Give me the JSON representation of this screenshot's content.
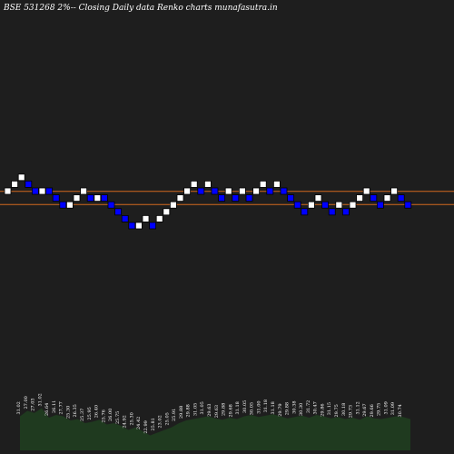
{
  "header": {
    "title": "BSE 531268  2%-- Closing Daily data  Renko  charts munafasutra.in"
  },
  "colors": {
    "background": "#1e1e1e",
    "up_brick": "#ffffff",
    "down_brick": "#0000ff",
    "band_line": "#d2691e",
    "volume_fill": "#1f3a1f"
  },
  "chart_data": {
    "type": "renko",
    "bricks": [
      {
        "y": 0,
        "d": "up"
      },
      {
        "y": 1,
        "d": "up"
      },
      {
        "y": 2,
        "d": "up"
      },
      {
        "y": 1,
        "d": "down"
      },
      {
        "y": 0,
        "d": "down"
      },
      {
        "y": 0,
        "d": "up"
      },
      {
        "y": 0,
        "d": "down"
      },
      {
        "y": -1,
        "d": "down"
      },
      {
        "y": -2,
        "d": "down"
      },
      {
        "y": -2,
        "d": "up"
      },
      {
        "y": -1,
        "d": "up"
      },
      {
        "y": 0,
        "d": "up"
      },
      {
        "y": -1,
        "d": "down"
      },
      {
        "y": -1,
        "d": "up"
      },
      {
        "y": -1,
        "d": "down"
      },
      {
        "y": -2,
        "d": "down"
      },
      {
        "y": -3,
        "d": "down"
      },
      {
        "y": -4,
        "d": "down"
      },
      {
        "y": -5,
        "d": "down"
      },
      {
        "y": -5,
        "d": "up"
      },
      {
        "y": -4,
        "d": "up"
      },
      {
        "y": -5,
        "d": "down"
      },
      {
        "y": -4,
        "d": "up"
      },
      {
        "y": -3,
        "d": "up"
      },
      {
        "y": -2,
        "d": "up"
      },
      {
        "y": -1,
        "d": "up"
      },
      {
        "y": 0,
        "d": "up"
      },
      {
        "y": 1,
        "d": "up"
      },
      {
        "y": 0,
        "d": "down"
      },
      {
        "y": 1,
        "d": "up"
      },
      {
        "y": 0,
        "d": "down"
      },
      {
        "y": -1,
        "d": "down"
      },
      {
        "y": 0,
        "d": "up"
      },
      {
        "y": -1,
        "d": "down"
      },
      {
        "y": 0,
        "d": "up"
      },
      {
        "y": -1,
        "d": "down"
      },
      {
        "y": 0,
        "d": "up"
      },
      {
        "y": 1,
        "d": "up"
      },
      {
        "y": 0,
        "d": "down"
      },
      {
        "y": 1,
        "d": "up"
      },
      {
        "y": 0,
        "d": "down"
      },
      {
        "y": -1,
        "d": "down"
      },
      {
        "y": -2,
        "d": "down"
      },
      {
        "y": -3,
        "d": "down"
      },
      {
        "y": -2,
        "d": "up"
      },
      {
        "y": -1,
        "d": "up"
      },
      {
        "y": -2,
        "d": "down"
      },
      {
        "y": -3,
        "d": "down"
      },
      {
        "y": -2,
        "d": "up"
      },
      {
        "y": -3,
        "d": "down"
      },
      {
        "y": -2,
        "d": "up"
      },
      {
        "y": -1,
        "d": "up"
      },
      {
        "y": 0,
        "d": "up"
      },
      {
        "y": -1,
        "d": "down"
      },
      {
        "y": -2,
        "d": "down"
      },
      {
        "y": -1,
        "d": "up"
      },
      {
        "y": 0,
        "d": "up"
      },
      {
        "y": -1,
        "d": "down"
      },
      {
        "y": -2,
        "d": "down"
      }
    ],
    "band_levels": [
      -0.5,
      -2.4
    ],
    "volume_labels": [
      "31.02",
      "27.00",
      "27.03",
      "31.02",
      "26.64",
      "26.11",
      "27.77",
      "25.30",
      "26.35",
      "25.37",
      "25.95",
      "26.40",
      "25.76",
      "26.00",
      "25.75",
      "24.92",
      "25.30",
      "24.42",
      "22.99",
      "25.81",
      "23.02",
      "25.05",
      "25.91",
      "29.88",
      "29.88",
      "31.05",
      "31.05",
      "29.63",
      "29.63",
      "29.88",
      "29.68",
      "31.18",
      "30.05",
      "30.05",
      "31.00",
      "31.18",
      "31.18",
      "29.79",
      "29.88",
      "30.38",
      "30.30",
      "31.72",
      "30.47",
      "29.86",
      "31.15",
      "29.75",
      "30.18",
      "29.73",
      "31.12",
      "29.67",
      "29.66",
      "29.75",
      "31.09",
      "31.09",
      "30.74"
    ],
    "volume_values": [
      50,
      58,
      55,
      62,
      48,
      52,
      50,
      44,
      46,
      40,
      42,
      45,
      38,
      40,
      36,
      30,
      34,
      28,
      22,
      26,
      30,
      34,
      40,
      44,
      46,
      48,
      50,
      47,
      45,
      48,
      46,
      50,
      52,
      49,
      51,
      53,
      50,
      47,
      49,
      51,
      48,
      52,
      50,
      47,
      49,
      46,
      48,
      45,
      50,
      47,
      46,
      48,
      50,
      49,
      46
    ]
  }
}
